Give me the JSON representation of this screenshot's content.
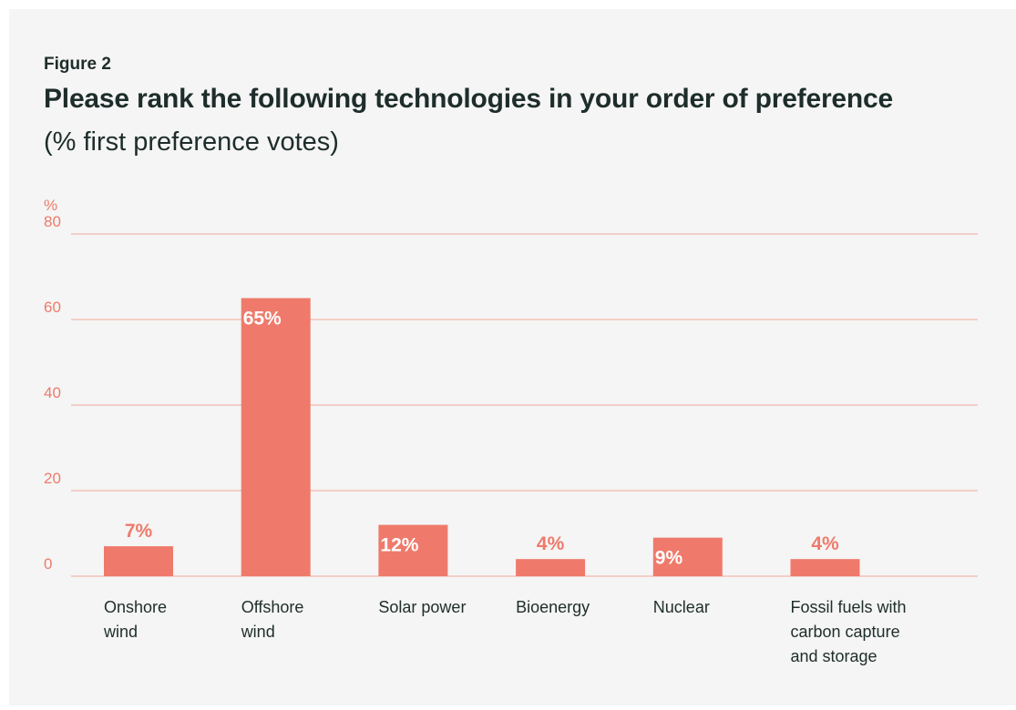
{
  "figure_label": "Figure 2",
  "title": "Please rank the following technologies in your order of preference",
  "subtitle": "(% first preference votes)",
  "colors": {
    "background": "#f4f5f4",
    "bar": "#ef7a6b",
    "gridline": "#f2a79d",
    "axis_text": "#ee7a6c",
    "label_inside": "#ffffff",
    "label_outside": "#ef7a6b",
    "text": "#1e2d2b"
  },
  "chart_data": {
    "type": "bar",
    "ylabel": "%",
    "ylim": [
      0,
      80
    ],
    "yticks": [
      "0",
      "20",
      "40",
      "60",
      "80"
    ],
    "grid": true,
    "categories": [
      [
        "Onshore",
        "wind"
      ],
      [
        "Offshore",
        "wind"
      ],
      [
        "Solar power"
      ],
      [
        "Bioenergy"
      ],
      [
        "Nuclear"
      ],
      [
        "Fossil fuels with",
        "carbon capture",
        "and storage"
      ]
    ],
    "values": [
      7,
      65,
      12,
      4,
      9,
      4
    ],
    "value_labels": [
      "7%",
      "65%",
      "12%",
      "4%",
      "9%",
      "4%"
    ],
    "label_inside_bar": [
      false,
      true,
      true,
      false,
      true,
      false
    ]
  }
}
